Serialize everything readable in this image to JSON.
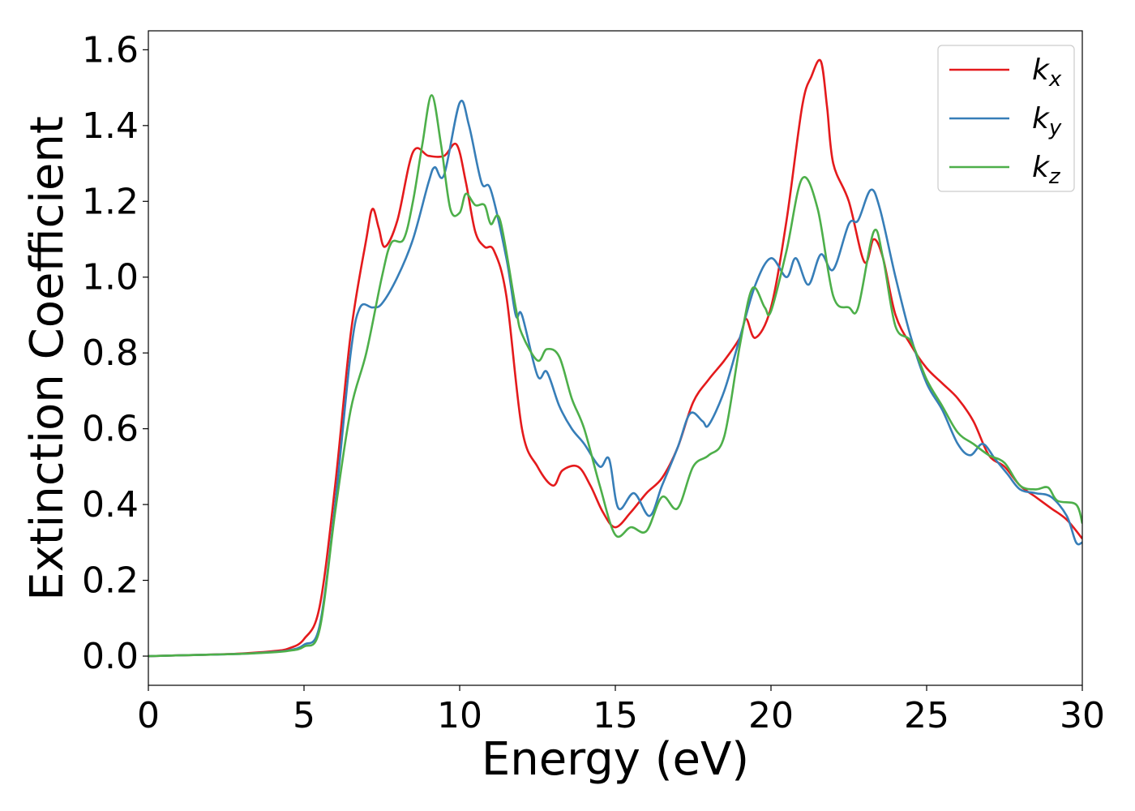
{
  "chart_data": {
    "type": "line",
    "xlabel": "Energy (eV)",
    "ylabel": "Extinction Coefficient",
    "xlim": [
      0,
      30
    ],
    "xticks": [
      0,
      5,
      10,
      15,
      20,
      25,
      30
    ],
    "ylim": [
      -0.077,
      1.65
    ],
    "yticks": [
      {
        "value": 0,
        "label": "0.0"
      },
      {
        "value": 0.2,
        "label": "0.2"
      },
      {
        "value": 0.4,
        "label": "0.4"
      },
      {
        "value": 0.6,
        "label": "0.6"
      },
      {
        "value": 0.8,
        "label": "0.8"
      },
      {
        "value": 1.0,
        "label": "1.0"
      },
      {
        "value": 1.2,
        "label": "1.2"
      },
      {
        "value": 1.4,
        "label": "1.4"
      },
      {
        "value": 1.6,
        "label": "1.6"
      }
    ],
    "legend": "upper right",
    "series": [
      {
        "name": "k_x",
        "color": "#e41a1c",
        "x": [
          0,
          1,
          2,
          3,
          4,
          4.5,
          5,
          5.5,
          6,
          6.5,
          7,
          7.2,
          7.4,
          7.6,
          8,
          8.5,
          9,
          9.5,
          9.9,
          10.2,
          10.5,
          10.8,
          11.1,
          11.5,
          12,
          12.5,
          13,
          13.3,
          13.8,
          14.2,
          14.6,
          15,
          15.5,
          16,
          16.5,
          17,
          17.5,
          18,
          18.5,
          19,
          19.2,
          19.5,
          20,
          20.5,
          21,
          21.3,
          21.6,
          21.8,
          22,
          22.5,
          23,
          23.3,
          23.6,
          24,
          24.5,
          25,
          25.5,
          26,
          26.5,
          27,
          27.5,
          28,
          28.5,
          29,
          29.5,
          30
        ],
        "values": [
          0,
          0.002,
          0.004,
          0.007,
          0.013,
          0.02,
          0.045,
          0.13,
          0.45,
          0.85,
          1.1,
          1.18,
          1.13,
          1.08,
          1.15,
          1.33,
          1.32,
          1.32,
          1.35,
          1.25,
          1.12,
          1.08,
          1.07,
          0.95,
          0.6,
          0.5,
          0.45,
          0.49,
          0.5,
          0.45,
          0.38,
          0.34,
          0.38,
          0.43,
          0.47,
          0.55,
          0.67,
          0.73,
          0.78,
          0.84,
          0.89,
          0.84,
          0.92,
          1.15,
          1.45,
          1.53,
          1.57,
          1.45,
          1.3,
          1.2,
          1.04,
          1.1,
          1.05,
          0.9,
          0.82,
          0.76,
          0.72,
          0.68,
          0.62,
          0.53,
          0.5,
          0.45,
          0.42,
          0.39,
          0.36,
          0.31
        ]
      },
      {
        "name": "k_y",
        "color": "#377eb8",
        "x": [
          0,
          1,
          2,
          3,
          4,
          4.5,
          5,
          5.5,
          6,
          6.5,
          6.8,
          7.2,
          7.5,
          8,
          8.5,
          9,
          9.2,
          9.5,
          10,
          10.3,
          10.7,
          11,
          11.5,
          11.8,
          12,
          12.5,
          12.8,
          13.2,
          13.6,
          14,
          14.5,
          14.8,
          15.1,
          15.6,
          16.1,
          16.5,
          17,
          17.4,
          17.8,
          18,
          18.5,
          19,
          19.5,
          20,
          20.5,
          20.8,
          21.2,
          21.6,
          22,
          22.5,
          22.8,
          23.2,
          23.5,
          24,
          24.5,
          25,
          25.5,
          26,
          26.4,
          26.8,
          27.2,
          27.6,
          28,
          28.5,
          29,
          29.5,
          29.8,
          30
        ],
        "values": [
          0,
          0.002,
          0.004,
          0.006,
          0.011,
          0.015,
          0.03,
          0.08,
          0.4,
          0.8,
          0.92,
          0.92,
          0.93,
          1.0,
          1.1,
          1.25,
          1.29,
          1.27,
          1.46,
          1.4,
          1.25,
          1.23,
          1.05,
          0.9,
          0.9,
          0.74,
          0.75,
          0.66,
          0.6,
          0.56,
          0.5,
          0.52,
          0.39,
          0.43,
          0.37,
          0.45,
          0.55,
          0.64,
          0.62,
          0.61,
          0.7,
          0.84,
          0.98,
          1.05,
          1.0,
          1.05,
          0.98,
          1.06,
          1.02,
          1.14,
          1.15,
          1.23,
          1.18,
          1.0,
          0.84,
          0.72,
          0.65,
          0.56,
          0.53,
          0.56,
          0.52,
          0.48,
          0.44,
          0.43,
          0.42,
          0.37,
          0.3,
          0.3
        ]
      },
      {
        "name": "k_z",
        "color": "#4daf4a",
        "x": [
          0,
          1,
          2,
          3,
          4,
          4.5,
          5,
          5.5,
          6,
          6.5,
          7,
          7.5,
          7.8,
          8.2,
          8.5,
          8.8,
          9.1,
          9.4,
          9.7,
          10,
          10.2,
          10.5,
          10.8,
          11,
          11.3,
          11.8,
          12,
          12.5,
          12.8,
          13.2,
          13.6,
          14,
          14.5,
          15,
          15.5,
          16,
          16.5,
          17,
          17.5,
          18,
          18.5,
          19,
          19.4,
          19.8,
          20,
          20.5,
          21,
          21.5,
          22,
          22.5,
          22.8,
          23.3,
          23.6,
          24,
          24.5,
          25,
          25.5,
          26,
          26.5,
          27,
          27.5,
          28,
          28.5,
          28.9,
          29.2,
          29.8,
          30
        ],
        "values": [
          0,
          0.002,
          0.004,
          0.006,
          0.01,
          0.014,
          0.025,
          0.07,
          0.38,
          0.65,
          0.8,
          1.0,
          1.09,
          1.1,
          1.2,
          1.35,
          1.48,
          1.35,
          1.18,
          1.17,
          1.22,
          1.19,
          1.19,
          1.14,
          1.15,
          0.92,
          0.85,
          0.78,
          0.81,
          0.79,
          0.68,
          0.6,
          0.45,
          0.32,
          0.34,
          0.33,
          0.42,
          0.39,
          0.5,
          0.53,
          0.58,
          0.82,
          0.97,
          0.92,
          0.91,
          1.07,
          1.26,
          1.18,
          0.95,
          0.92,
          0.92,
          1.12,
          1.05,
          0.87,
          0.83,
          0.73,
          0.66,
          0.59,
          0.56,
          0.53,
          0.51,
          0.45,
          0.44,
          0.445,
          0.41,
          0.4,
          0.35
        ]
      }
    ]
  }
}
